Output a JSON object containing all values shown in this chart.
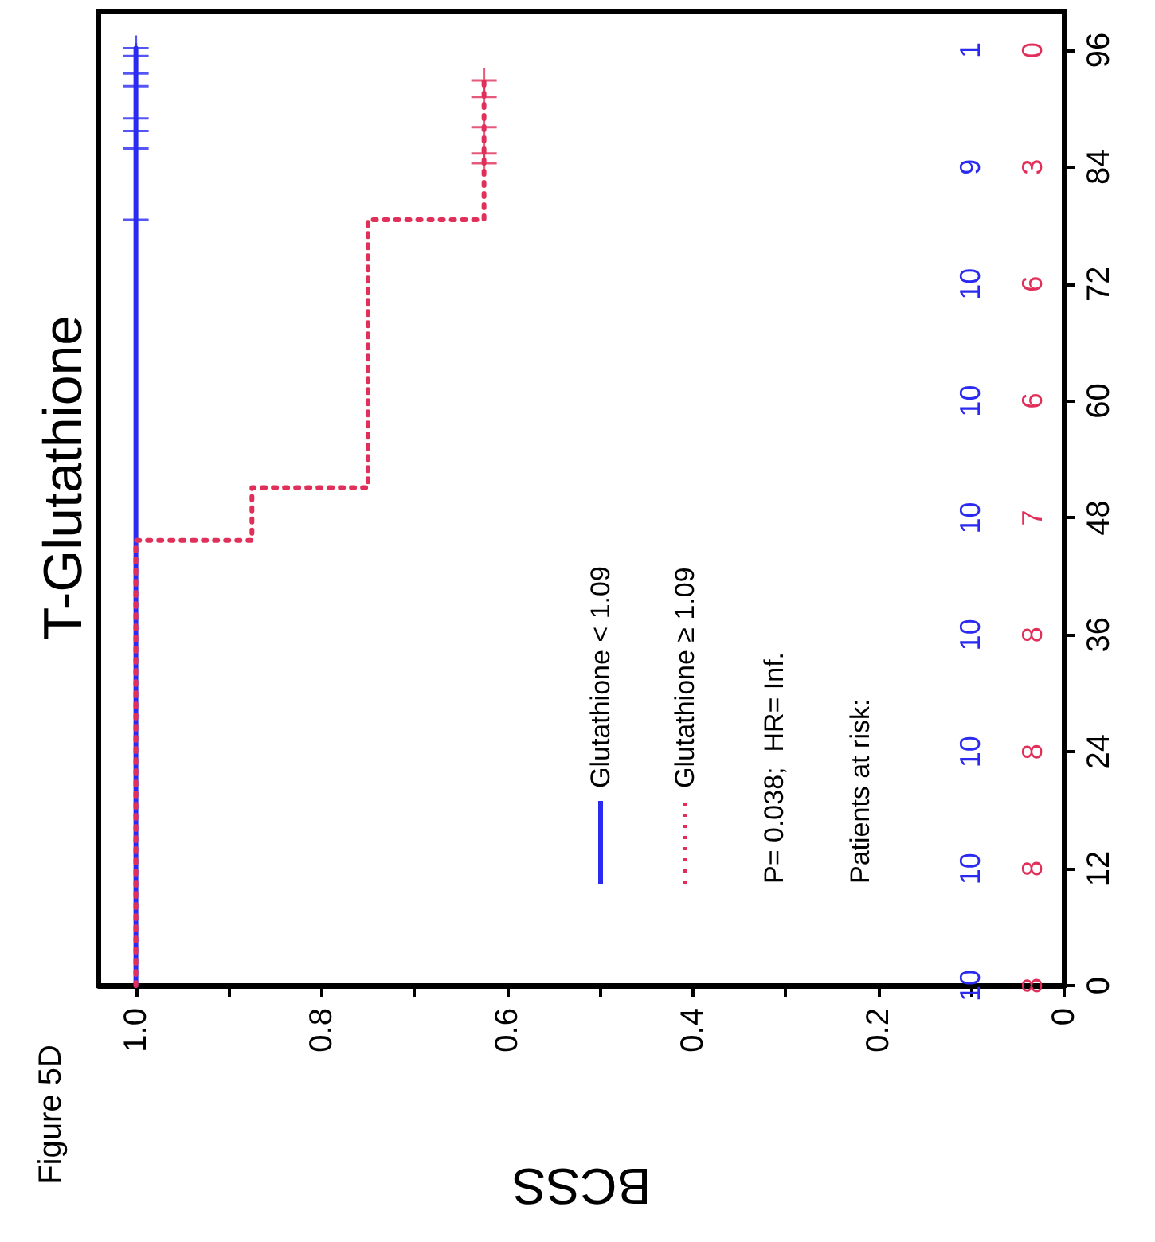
{
  "chart_data": {
    "type": "step",
    "title": "T-Glutathione",
    "subtitle": "Figure 5D",
    "xlabel": "BCSS",
    "xlim": [
      1.04,
      0
    ],
    "xticks": [
      0,
      {
        "value": 0.1,
        "label": null
      },
      0.2,
      {
        "value": 0.3,
        "label": null
      },
      0.4,
      {
        "value": 0.5,
        "label": null
      },
      0.6,
      {
        "value": 0.7,
        "label": null
      },
      0.8,
      {
        "value": 0.9,
        "label": null
      },
      {
        "value": 1,
        "label": "1.0"
      }
    ],
    "ylim": [
      0,
      100
    ],
    "yticks": [
      0,
      12,
      24,
      36,
      48,
      60,
      72,
      84,
      96
    ],
    "grid": false,
    "legend": "bottom",
    "series": [
      {
        "name": "Glutathione < 1.09",
        "color": "#2a2af0",
        "line_style": "solid",
        "marker": "none",
        "x": [
          1,
          1
        ],
        "values": [
          0,
          96.2
        ]
      },
      {
        "name": "Glutathione ≥ 1.09",
        "color": "#e0305a",
        "line_style": "dotted",
        "marker": "none",
        "x": [
          1,
          0.875,
          0.75,
          0.625,
          0.625
        ],
        "values": [
          0,
          45.7,
          51.1,
          78.6,
          92.9
        ]
      },
      {
        "type": "scatter",
        "color": "#2a2af0",
        "marker": "cross",
        "x": [
          1,
          1,
          1,
          1,
          1,
          1,
          1,
          1
        ],
        "values": [
          78.6,
          85.9,
          87.7,
          89.0,
          92.3,
          93.6,
          95.4,
          96.2
        ]
      },
      {
        "type": "scatter",
        "color": "#e0305a",
        "marker": "cross",
        "x": [
          0.625,
          0.625,
          0.625,
          0.625,
          0.625
        ],
        "values": [
          84.4,
          85.4,
          88.1,
          91.2,
          92.9
        ]
      }
    ],
    "annotations": [
      "P= 0.038;  HR= Inf.",
      "Patients at risk:",
      "10",
      "10",
      "10",
      "10",
      "10",
      "10",
      "10",
      "9",
      "1",
      "8",
      "8",
      "8",
      "8",
      "7",
      "6",
      "6",
      "3",
      "0"
    ]
  }
}
